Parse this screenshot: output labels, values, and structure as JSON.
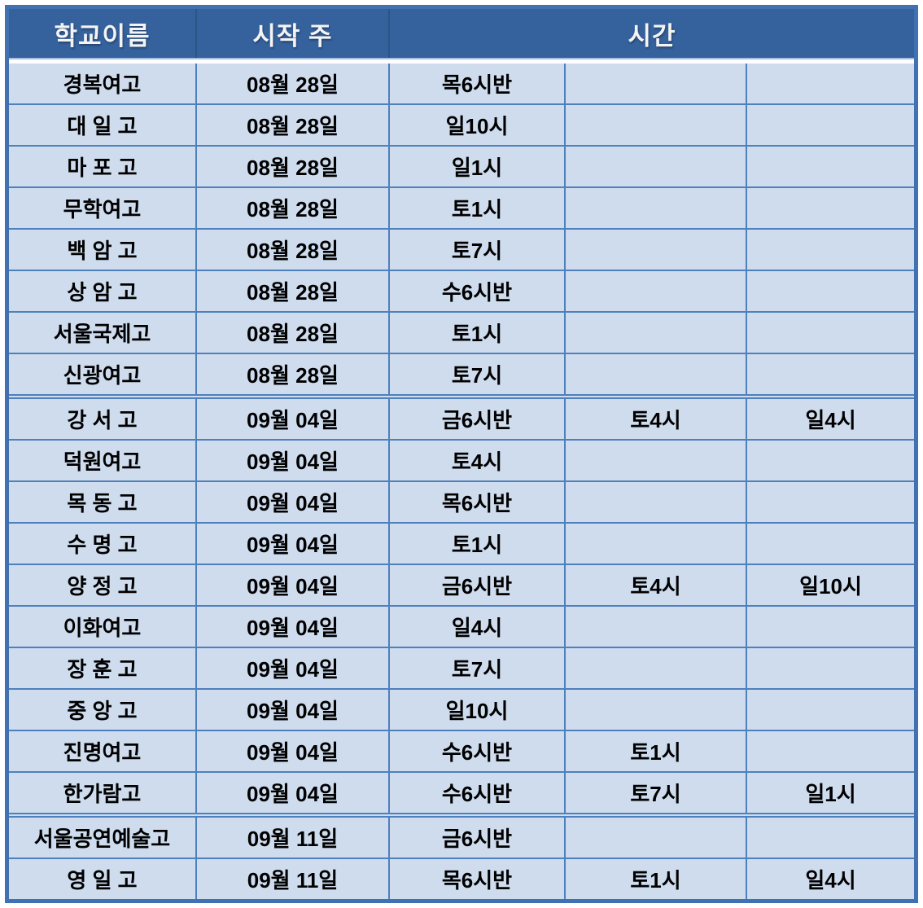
{
  "table": {
    "title_hint": "school-lesson-schedule",
    "headers": {
      "school": "학교이름",
      "start_week": "시작 주",
      "time": "시간"
    },
    "rows": [
      {
        "school": "경복여고",
        "start_week": "08월 28일",
        "times": [
          "목6시반",
          "",
          ""
        ]
      },
      {
        "school": "대 일 고",
        "start_week": "08월 28일",
        "times": [
          "일10시",
          "",
          ""
        ]
      },
      {
        "school": "마 포 고",
        "start_week": "08월 28일",
        "times": [
          "일1시",
          "",
          ""
        ]
      },
      {
        "school": "무학여고",
        "start_week": "08월 28일",
        "times": [
          "토1시",
          "",
          ""
        ]
      },
      {
        "school": "백 암 고",
        "start_week": "08월 28일",
        "times": [
          "토7시",
          "",
          ""
        ]
      },
      {
        "school": "상 암 고",
        "start_week": "08월 28일",
        "times": [
          "수6시반",
          "",
          ""
        ]
      },
      {
        "school": "서울국제고",
        "start_week": "08월 28일",
        "times": [
          "토1시",
          "",
          ""
        ]
      },
      {
        "school": "신광여고",
        "start_week": "08월 28일",
        "times": [
          "토7시",
          "",
          ""
        ]
      },
      {
        "school": "강 서 고",
        "start_week": "09월 04일",
        "times": [
          "금6시반",
          "토4시",
          "일4시"
        ]
      },
      {
        "school": "덕원여고",
        "start_week": "09월 04일",
        "times": [
          "토4시",
          "",
          ""
        ]
      },
      {
        "school": "목 동 고",
        "start_week": "09월 04일",
        "times": [
          "목6시반",
          "",
          ""
        ]
      },
      {
        "school": "수 명 고",
        "start_week": "09월 04일",
        "times": [
          "토1시",
          "",
          ""
        ]
      },
      {
        "school": "양 정 고",
        "start_week": "09월 04일",
        "times": [
          "금6시반",
          "토4시",
          "일10시"
        ]
      },
      {
        "school": "이화여고",
        "start_week": "09월 04일",
        "times": [
          "일4시",
          "",
          ""
        ]
      },
      {
        "school": "장 훈 고",
        "start_week": "09월 04일",
        "times": [
          "토7시",
          "",
          ""
        ]
      },
      {
        "school": "중 앙 고",
        "start_week": "09월 04일",
        "times": [
          "일10시",
          "",
          ""
        ]
      },
      {
        "school": "진명여고",
        "start_week": "09월 04일",
        "times": [
          "수6시반",
          "토1시",
          ""
        ]
      },
      {
        "school": "한가람고",
        "start_week": "09월 04일",
        "times": [
          "수6시반",
          "토7시",
          "일1시"
        ]
      },
      {
        "school": "서울공연예술고",
        "start_week": "09월 11일",
        "times": [
          "금6시반",
          "",
          ""
        ]
      },
      {
        "school": "영 일 고",
        "start_week": "09월 11일",
        "times": [
          "목6시반",
          "토1시",
          "일4시"
        ]
      }
    ],
    "colors": {
      "header_bg": "#35629D",
      "header_text": "#F4F4F4",
      "row_bg": "#CEDCEE",
      "gridline": "#4E80BD",
      "outer_border": "#4271B2",
      "body_text": "#000000"
    }
  }
}
